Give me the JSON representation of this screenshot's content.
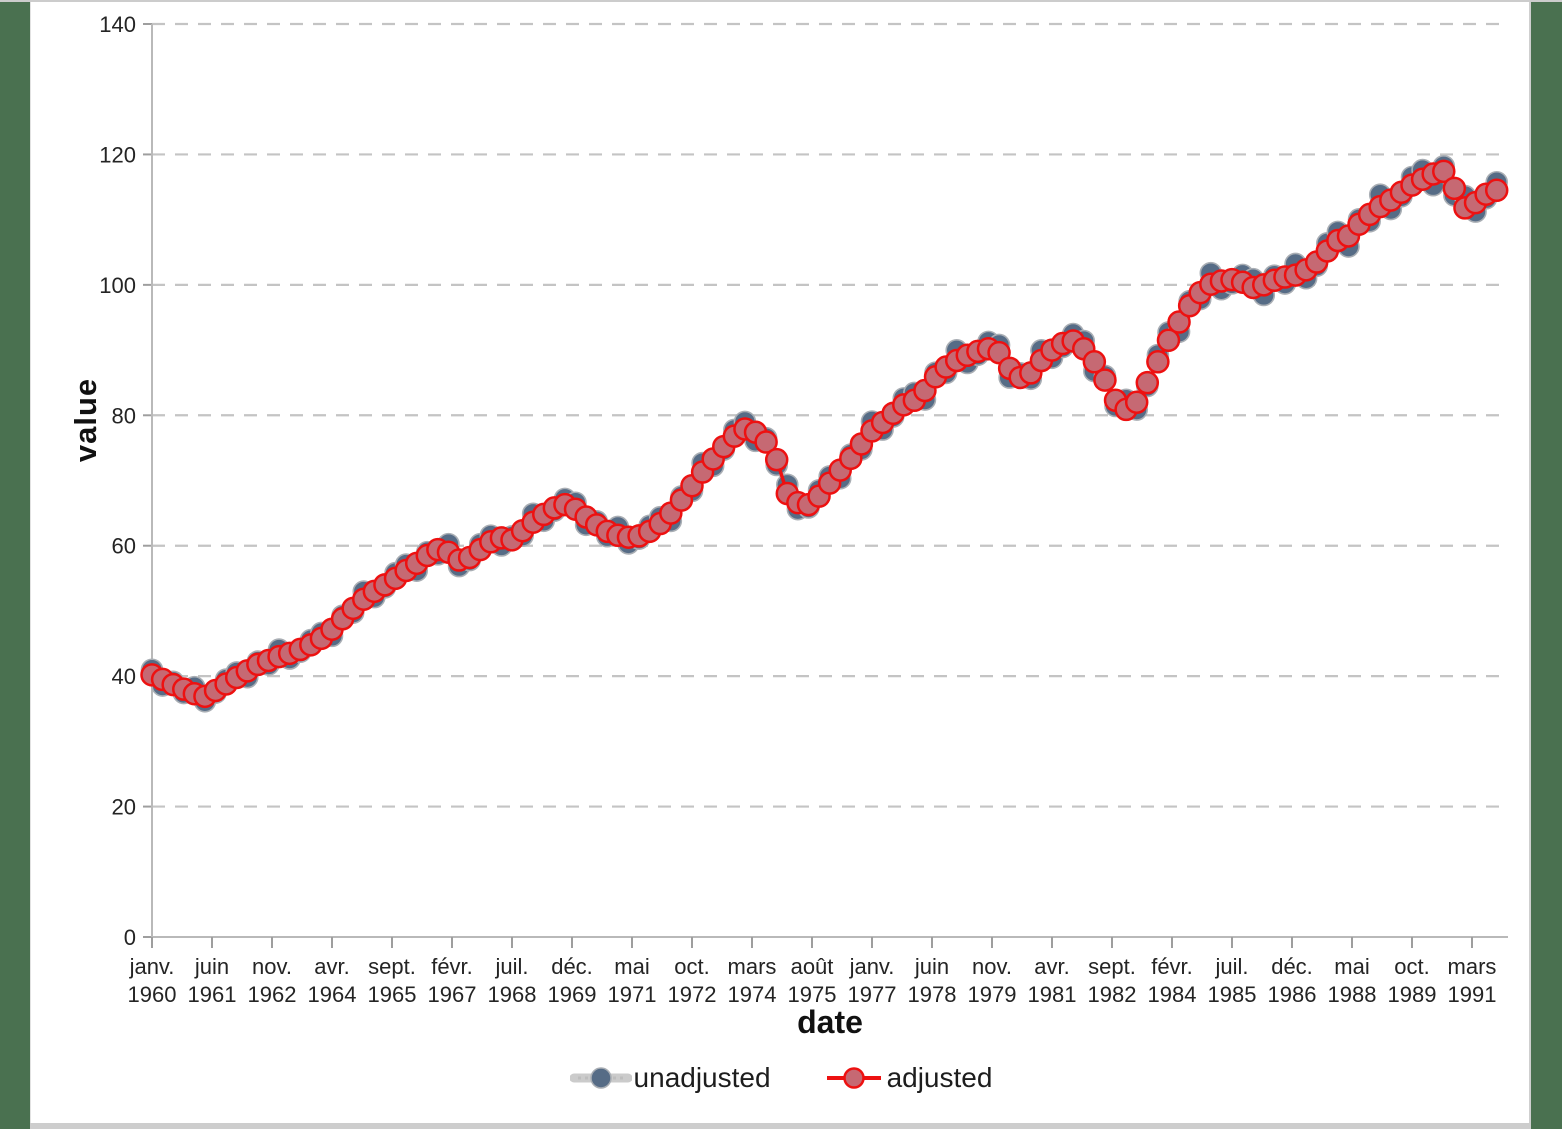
{
  "frame": {
    "left_bar_color": "#4a7150",
    "right_bar_color": "#4a7150",
    "top_strip_color": "#cccccc",
    "bottom_strip_color": "#cdcdcd",
    "background": "#ffffff"
  },
  "chart_data": {
    "type": "line",
    "title": "",
    "xlabel": "date",
    "ylabel": "value",
    "ylim": [
      0,
      140
    ],
    "grid": "dashed-horizontal",
    "legend_position": "bottom-center",
    "y_ticks": [
      0,
      20,
      40,
      60,
      80,
      100,
      120,
      140
    ],
    "x_ticks": [
      {
        "month": "janv.",
        "year": "1960"
      },
      {
        "month": "juin",
        "year": "1961"
      },
      {
        "month": "nov.",
        "year": "1962"
      },
      {
        "month": "avr.",
        "year": "1964"
      },
      {
        "month": "sept.",
        "year": "1965"
      },
      {
        "month": "févr.",
        "year": "1967"
      },
      {
        "month": "juil.",
        "year": "1968"
      },
      {
        "month": "déc.",
        "year": "1969"
      },
      {
        "month": "mai",
        "year": "1971"
      },
      {
        "month": "oct.",
        "year": "1972"
      },
      {
        "month": "mars",
        "year": "1974"
      },
      {
        "month": "août",
        "year": "1975"
      },
      {
        "month": "janv.",
        "year": "1977"
      },
      {
        "month": "juin",
        "year": "1978"
      },
      {
        "month": "nov.",
        "year": "1979"
      },
      {
        "month": "avr.",
        "year": "1981"
      },
      {
        "month": "sept.",
        "year": "1982"
      },
      {
        "month": "févr.",
        "year": "1984"
      },
      {
        "month": "juil.",
        "year": "1985"
      },
      {
        "month": "déc.",
        "year": "1986"
      },
      {
        "month": "mai",
        "year": "1988"
      },
      {
        "month": "oct.",
        "year": "1989"
      },
      {
        "month": "mars",
        "year": "1991"
      }
    ],
    "x_tick_month_interval": 17,
    "x_start": "janv. 1960",
    "sample_step_months": 3,
    "colors": {
      "adjusted_stroke": "#ed1111",
      "adjusted_fill": "#c66973",
      "unadjusted_marker": "#566c86",
      "unadjusted_marker_stroke": "#a9aeb4",
      "unadjusted_line": "#cbcbcb",
      "gridline": "#c4c4c4",
      "axis": "#b9b9b9",
      "tick": "#9e9e9e"
    },
    "series": [
      {
        "name": "unadjusted",
        "note": "hidden behind adjusted; values estimated as adjusted plus seasonal offset",
        "offset_pattern": [
          0.9,
          -1.1,
          0.5,
          -0.7,
          1.2,
          -0.9,
          -0.4,
          0.8
        ],
        "offset_scale_base": 0.5,
        "offset_scale_div": 110
      },
      {
        "name": "adjusted",
        "values": [
          40.2,
          39.5,
          38.7,
          38.0,
          37.3,
          36.9,
          37.8,
          38.8,
          39.8,
          40.8,
          41.8,
          42.4,
          43.0,
          43.5,
          44.1,
          44.8,
          45.8,
          47.2,
          48.8,
          50.4,
          51.8,
          53.0,
          54.0,
          55.0,
          56.2,
          57.3,
          58.5,
          59.4,
          59.0,
          57.8,
          58.2,
          59.4,
          60.6,
          61.2,
          60.9,
          62.3,
          63.6,
          64.8,
          65.8,
          66.3,
          65.6,
          64.4,
          63.2,
          62.2,
          61.6,
          61.3,
          61.5,
          62.2,
          63.4,
          65.0,
          67.0,
          69.2,
          71.3,
          73.3,
          75.2,
          76.8,
          77.9,
          77.4,
          75.9,
          73.2,
          68.0,
          66.6,
          66.3,
          67.6,
          69.6,
          71.6,
          73.4,
          75.6,
          77.6,
          78.9,
          80.3,
          81.6,
          82.3,
          83.8,
          85.9,
          87.4,
          88.4,
          89.2,
          89.8,
          90.2,
          89.6,
          87.2,
          85.8,
          86.5,
          88.4,
          90.0,
          91.0,
          91.4,
          90.2,
          88.2,
          85.4,
          82.3,
          80.9,
          82.0,
          85.0,
          88.2,
          91.5,
          94.3,
          96.8,
          98.8,
          100.1,
          100.6,
          100.8,
          100.4,
          99.6,
          100.0,
          100.7,
          101.2,
          101.5,
          102.3,
          103.5,
          105.2,
          106.8,
          107.5,
          109.3,
          110.8,
          112.0,
          113.0,
          114.2,
          115.3,
          116.2,
          117.0,
          117.4,
          114.8,
          111.8,
          112.6,
          113.9,
          114.5
        ]
      }
    ]
  },
  "legend": {
    "unadjusted_label": "unadjusted",
    "adjusted_label": "adjusted"
  }
}
